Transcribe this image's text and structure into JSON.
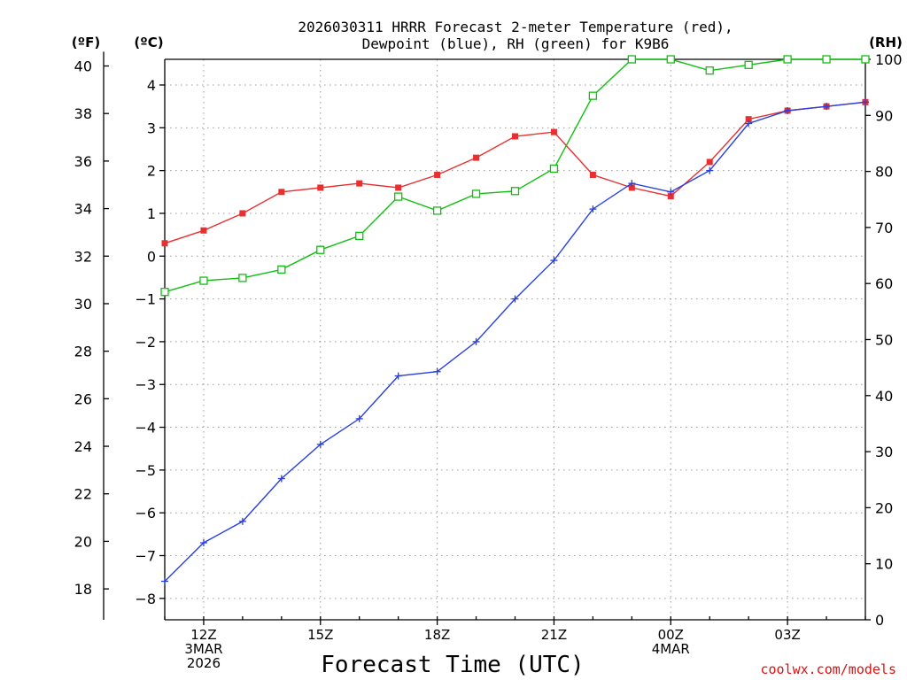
{
  "chart_data": {
    "type": "line",
    "title_lines": [
      "2026030311 HRRR Forecast 2-meter Temperature (red),",
      "Dewpoint (blue), RH (green) for K9B6"
    ],
    "unit_labels": {
      "fahrenheit": "(ºF)",
      "celsius": "(ºC)",
      "rh": "(RH)"
    },
    "xlabel": "Forecast Time (UTC)",
    "credit": "coolwx.com/models",
    "x_hours": [
      11,
      12,
      13,
      14,
      15,
      16,
      17,
      18,
      19,
      20,
      21,
      22,
      23,
      24,
      25,
      26,
      27,
      28,
      29
    ],
    "xlim": [
      11,
      29
    ],
    "x_ticks": [
      {
        "hour": 12,
        "lines": [
          "12Z",
          "3MAR",
          "2026"
        ]
      },
      {
        "hour": 15,
        "lines": [
          "15Z"
        ]
      },
      {
        "hour": 18,
        "lines": [
          "18Z"
        ]
      },
      {
        "hour": 21,
        "lines": [
          "21Z"
        ]
      },
      {
        "hour": 24,
        "lines": [
          "00Z",
          "4MAR"
        ]
      },
      {
        "hour": 27,
        "lines": [
          "03Z"
        ]
      }
    ],
    "y_celsius": {
      "ylim": [
        -8.5,
        4.6
      ],
      "ticks": [
        4,
        3,
        2,
        1,
        0,
        -1,
        -2,
        -3,
        -4,
        -5,
        -6,
        -7,
        -8
      ],
      "tick_labels": [
        "4",
        "3",
        "2",
        "1",
        "0",
        "−1",
        "−2",
        "−3",
        "−4",
        "−5",
        "−6",
        "−7",
        "−8"
      ]
    },
    "y_fahrenheit": {
      "ticks": [
        40,
        38,
        36,
        34,
        32,
        30,
        28,
        26,
        24,
        22,
        20,
        18
      ],
      "tick_labels": [
        "40",
        "38",
        "36",
        "34",
        "32",
        "30",
        "28",
        "26",
        "24",
        "22",
        "20",
        "18"
      ]
    },
    "y_rh": {
      "ylim": [
        0,
        100
      ],
      "ticks": [
        100,
        90,
        80,
        70,
        60,
        50,
        40,
        30,
        20,
        10,
        0
      ],
      "tick_labels": [
        "100",
        "90",
        "80",
        "70",
        "60",
        "50",
        "40",
        "30",
        "20",
        "10",
        "0"
      ]
    },
    "series": [
      {
        "name": "Temperature",
        "unit": "C",
        "color": "#e83030",
        "marker": "filled-square",
        "values": [
          0.3,
          0.6,
          1.0,
          1.5,
          1.6,
          1.7,
          1.6,
          1.9,
          2.3,
          2.8,
          2.9,
          1.9,
          1.6,
          1.4,
          2.2,
          3.2,
          3.4,
          3.5,
          3.6
        ]
      },
      {
        "name": "Dewpoint",
        "unit": "C",
        "color": "#2840e0",
        "marker": "plus",
        "values": [
          -7.6,
          -6.7,
          -6.2,
          -5.2,
          -4.4,
          -3.8,
          -2.8,
          -2.7,
          -2.0,
          -1.0,
          -0.1,
          1.1,
          1.7,
          1.5,
          2.0,
          3.1,
          3.4,
          3.5,
          3.6
        ]
      },
      {
        "name": "RH",
        "unit": "%",
        "color": "#10c010",
        "marker": "open-square",
        "values": [
          58.5,
          60.5,
          61,
          62.5,
          66,
          68.5,
          75.5,
          73,
          76,
          76.5,
          80.5,
          93.5,
          100,
          100,
          98,
          99,
          100,
          100,
          100
        ]
      }
    ]
  }
}
